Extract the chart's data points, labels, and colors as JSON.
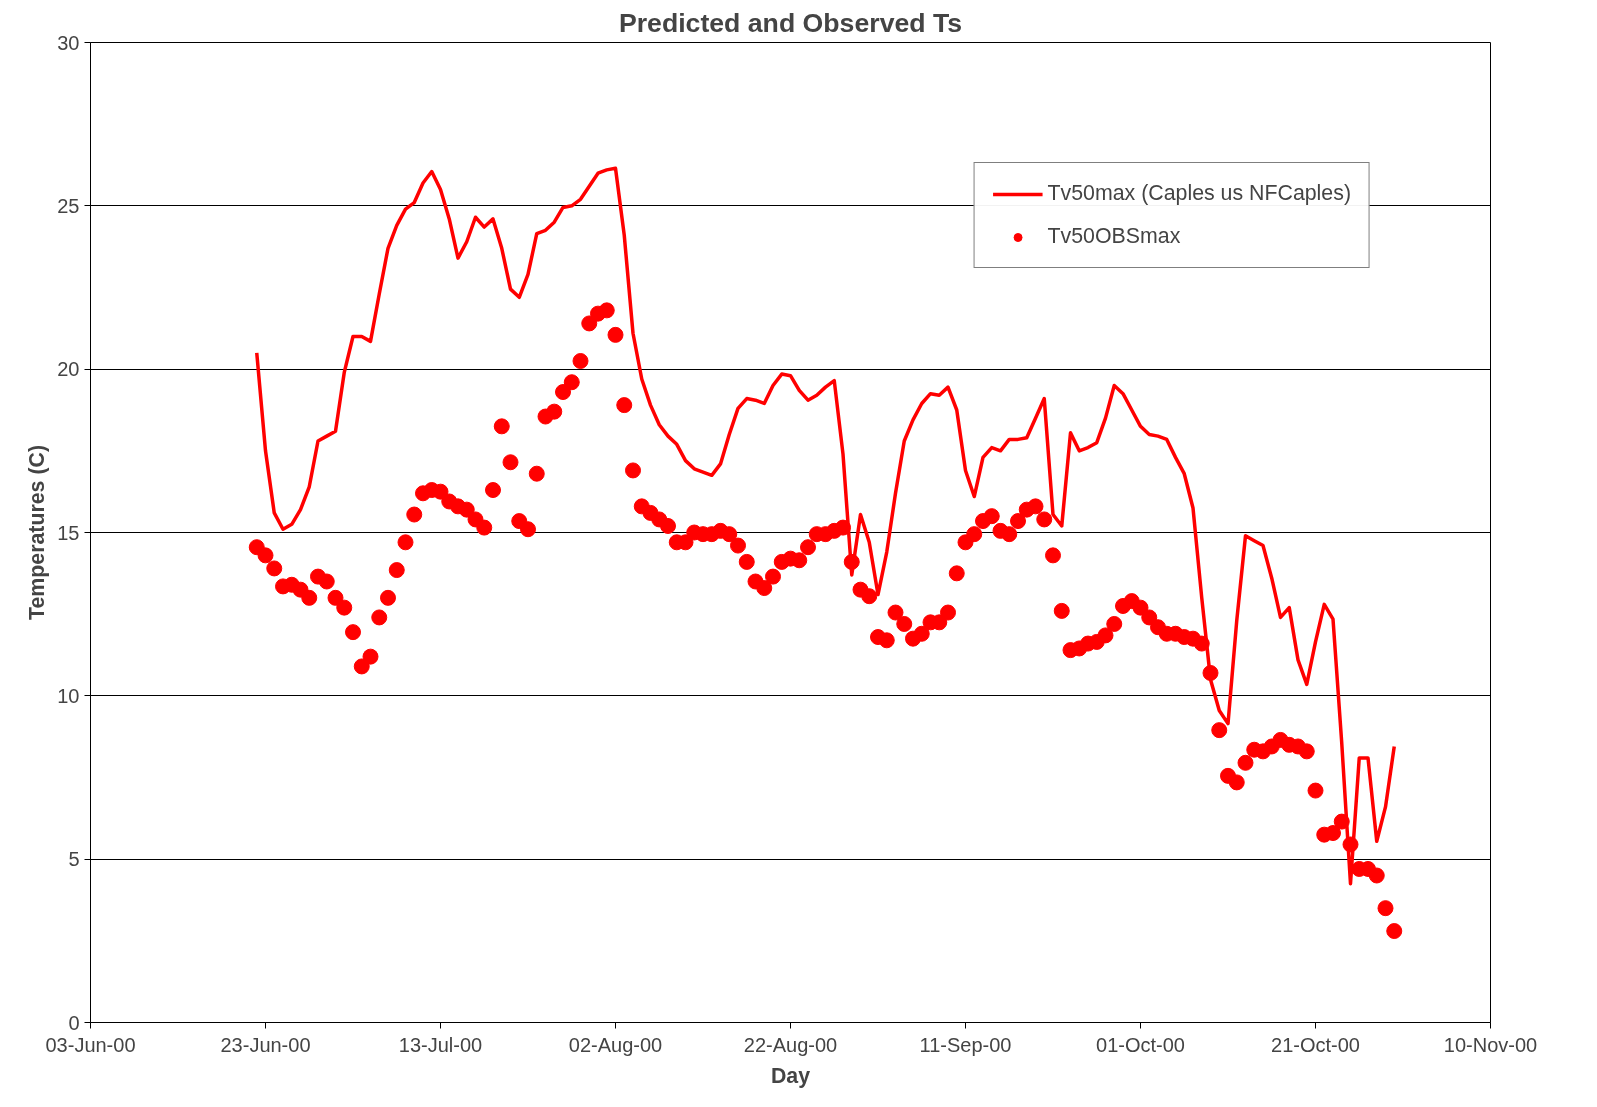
{
  "chart_data": {
    "type": "line",
    "title": "Predicted and Observed Ts",
    "xlabel": "Day",
    "ylabel": "Temperatures (C)",
    "x": [
      "2000-06-22",
      "2000-06-23",
      "2000-06-24",
      "2000-06-25",
      "2000-06-26",
      "2000-06-27",
      "2000-06-28",
      "2000-06-29",
      "2000-06-30",
      "2000-07-01",
      "2000-07-02",
      "2000-07-03",
      "2000-07-04",
      "2000-07-05",
      "2000-07-06",
      "2000-07-07",
      "2000-07-08",
      "2000-07-09",
      "2000-07-10",
      "2000-07-11",
      "2000-07-12",
      "2000-07-13",
      "2000-07-14",
      "2000-07-15",
      "2000-07-16",
      "2000-07-17",
      "2000-07-18",
      "2000-07-19",
      "2000-07-20",
      "2000-07-21",
      "2000-07-22",
      "2000-07-23",
      "2000-07-24",
      "2000-07-25",
      "2000-07-26",
      "2000-07-27",
      "2000-07-28",
      "2000-07-29",
      "2000-07-30",
      "2000-07-31",
      "2000-08-01",
      "2000-08-02",
      "2000-08-03",
      "2000-08-04",
      "2000-08-05",
      "2000-08-06",
      "2000-08-07",
      "2000-08-08",
      "2000-08-09",
      "2000-08-10",
      "2000-08-11",
      "2000-08-12",
      "2000-08-13",
      "2000-08-14",
      "2000-08-15",
      "2000-08-16",
      "2000-08-17",
      "2000-08-18",
      "2000-08-19",
      "2000-08-20",
      "2000-08-21",
      "2000-08-22",
      "2000-08-23",
      "2000-08-24",
      "2000-08-25",
      "2000-08-26",
      "2000-08-27",
      "2000-08-28",
      "2000-08-29",
      "2000-08-30",
      "2000-08-31",
      "2000-09-01",
      "2000-09-02",
      "2000-09-03",
      "2000-09-04",
      "2000-09-05",
      "2000-09-06",
      "2000-09-07",
      "2000-09-08",
      "2000-09-09",
      "2000-09-10",
      "2000-09-11",
      "2000-09-12",
      "2000-09-13",
      "2000-09-14",
      "2000-09-15",
      "2000-09-16",
      "2000-09-17",
      "2000-09-18",
      "2000-09-19",
      "2000-09-20",
      "2000-09-21",
      "2000-09-22",
      "2000-09-23",
      "2000-09-24",
      "2000-09-25",
      "2000-09-26",
      "2000-09-27",
      "2000-09-28",
      "2000-09-29",
      "2000-09-30",
      "2000-10-01",
      "2000-10-02",
      "2000-10-03",
      "2000-10-04",
      "2000-10-05",
      "2000-10-06",
      "2000-10-07",
      "2000-10-08",
      "2000-10-09",
      "2000-10-10",
      "2000-10-11",
      "2000-10-12",
      "2000-10-13",
      "2000-10-14",
      "2000-10-15",
      "2000-10-16",
      "2000-10-17",
      "2000-10-18",
      "2000-10-19",
      "2000-10-20",
      "2000-10-21",
      "2000-10-22",
      "2000-10-23",
      "2000-10-24",
      "2000-10-25",
      "2000-10-26",
      "2000-10-27",
      "2000-10-28",
      "2000-10-29",
      "2000-10-30"
    ],
    "series": [
      {
        "name": "Tv50max (Caples us NFCaples)",
        "color": "#ff0000",
        "line_style": "solid",
        "marker": "none",
        "values": [
          20.5,
          17.5,
          15.6,
          15.1,
          15.25,
          15.7,
          16.4,
          17.8,
          17.95,
          18.1,
          19.9,
          21.0,
          21.0,
          20.85,
          22.3,
          23.7,
          24.4,
          24.9,
          25.1,
          25.7,
          26.05,
          25.5,
          24.6,
          23.4,
          23.9,
          24.65,
          24.35,
          24.6,
          23.7,
          22.45,
          22.2,
          22.9,
          24.15,
          24.25,
          24.5,
          24.95,
          25.0,
          25.2,
          25.6,
          26.0,
          26.1,
          26.15,
          24.1,
          21.1,
          19.7,
          18.9,
          18.3,
          17.95,
          17.7,
          17.2,
          16.95,
          16.85,
          16.75,
          17.1,
          18.0,
          18.8,
          19.1,
          19.05,
          18.95,
          19.5,
          19.85,
          19.8,
          19.35,
          19.05,
          19.2,
          19.45,
          19.65,
          17.4,
          13.7,
          15.55,
          14.7,
          13.1,
          14.4,
          16.2,
          17.8,
          18.45,
          18.95,
          19.25,
          19.2,
          19.45,
          18.75,
          16.9,
          16.1,
          17.3,
          17.6,
          17.5,
          17.85,
          17.85,
          17.9,
          18.5,
          19.1,
          15.55,
          15.2,
          18.05,
          17.5,
          17.6,
          17.75,
          18.5,
          19.5,
          19.25,
          18.75,
          18.25,
          18.0,
          17.95,
          17.85,
          17.3,
          16.8,
          15.75,
          13.0,
          10.5,
          9.55,
          9.15,
          12.3,
          14.9,
          14.75,
          14.6,
          13.6,
          12.4,
          12.7,
          11.1,
          10.35,
          11.65,
          12.8,
          12.35,
          8.55,
          4.25,
          8.1,
          8.1,
          5.55,
          6.6,
          8.45
        ]
      },
      {
        "name": "Tv50OBSmax",
        "type": "scatter",
        "color": "#ff0000",
        "marker": "circle",
        "values": [
          14.55,
          14.3,
          13.9,
          13.35,
          13.4,
          13.25,
          13.0,
          13.65,
          13.5,
          13.0,
          12.7,
          11.95,
          10.9,
          11.2,
          12.4,
          13.0,
          13.85,
          14.7,
          15.55,
          16.2,
          16.3,
          16.25,
          15.95,
          15.8,
          15.7,
          15.4,
          15.15,
          16.3,
          18.25,
          17.15,
          15.35,
          15.1,
          16.8,
          18.55,
          18.7,
          19.3,
          19.6,
          20.25,
          21.4,
          21.7,
          21.8,
          21.05,
          18.9,
          16.9,
          15.8,
          15.6,
          15.4,
          15.2,
          14.7,
          14.7,
          15.0,
          14.95,
          14.95,
          15.05,
          14.95,
          14.6,
          14.1,
          13.5,
          13.3,
          13.65,
          14.1,
          14.2,
          14.15,
          14.55,
          14.95,
          14.95,
          15.05,
          15.15,
          14.1,
          13.25,
          13.05,
          11.8,
          11.7,
          12.55,
          12.2,
          11.75,
          11.9,
          12.25,
          12.25,
          12.55,
          13.75,
          14.7,
          14.95,
          15.35,
          15.5,
          15.05,
          14.95,
          15.35,
          15.7,
          15.8,
          15.4,
          14.3,
          12.6,
          11.4,
          11.45,
          11.6,
          11.65,
          11.85,
          12.2,
          12.75,
          12.9,
          12.7,
          12.4,
          12.1,
          11.9,
          11.9,
          11.8,
          11.75,
          11.6,
          10.7,
          8.95,
          7.55,
          7.35,
          7.95,
          8.35,
          8.3,
          8.45,
          8.65,
          8.5,
          8.45,
          8.3,
          7.1,
          5.75,
          5.8,
          6.15,
          5.45,
          4.7,
          4.7,
          4.5,
          3.5,
          2.8
        ]
      }
    ],
    "xlim": [
      "2000-06-03",
      "2000-11-10"
    ],
    "xticks": [
      {
        "value": "2000-06-03",
        "label": "03-Jun-00"
      },
      {
        "value": "2000-06-23",
        "label": "23-Jun-00"
      },
      {
        "value": "2000-07-13",
        "label": "13-Jul-00"
      },
      {
        "value": "2000-08-02",
        "label": "02-Aug-00"
      },
      {
        "value": "2000-08-22",
        "label": "22-Aug-00"
      },
      {
        "value": "2000-09-11",
        "label": "11-Sep-00"
      },
      {
        "value": "2000-10-01",
        "label": "01-Oct-00"
      },
      {
        "value": "2000-10-21",
        "label": "21-Oct-00"
      },
      {
        "value": "2000-11-10",
        "label": "10-Nov-00"
      }
    ],
    "ylim": [
      0,
      30
    ],
    "yticks": [
      0,
      5,
      10,
      15,
      20,
      25,
      30
    ],
    "grid": "y",
    "legend": "top right"
  }
}
